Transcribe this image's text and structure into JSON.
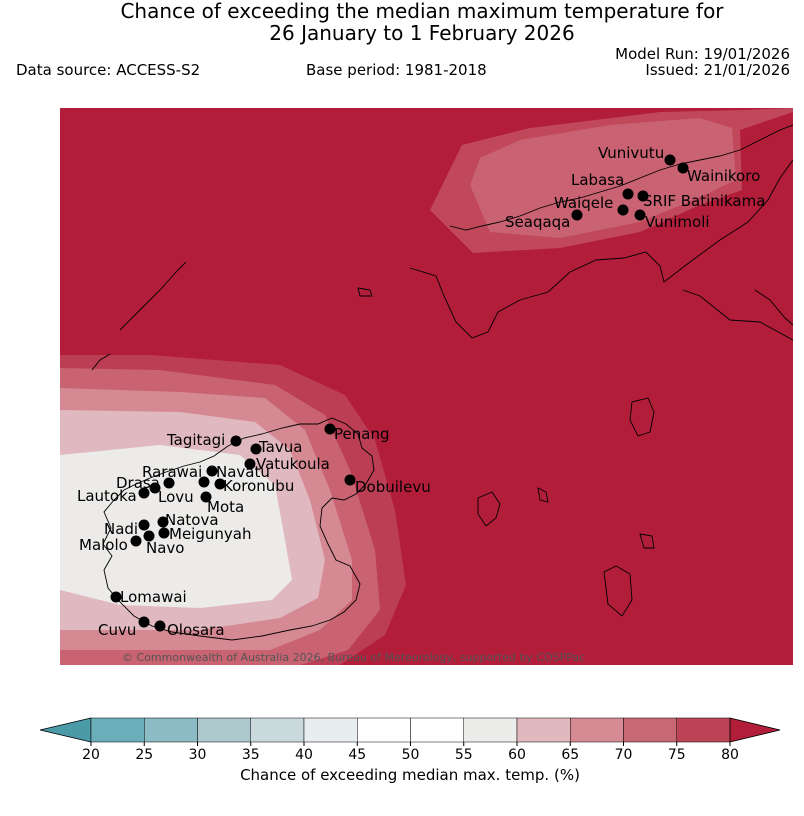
{
  "header": {
    "title_line1": "Chance of exceeding the median maximum temperature for",
    "title_line2": "26 January to 1 February 2026",
    "data_source": "Data source: ACCESS-S2",
    "base_period": "Base period: 1981-2018",
    "model_run": "Model Run: 19/01/2026",
    "issued": "Issued: 21/01/2026"
  },
  "map": {
    "copyright": "© Commonwealth of Australia 2026, Bureau of Meteorology, supported by COSPPac",
    "background_color": "#b21d3a",
    "locations": [
      {
        "name": "Vunivutu"
      },
      {
        "name": "Wainikoro"
      },
      {
        "name": "Labasa"
      },
      {
        "name": "Waiqele"
      },
      {
        "name": "SRIF Batinikama"
      },
      {
        "name": "Seaqaqa"
      },
      {
        "name": "Vunimoli"
      },
      {
        "name": "Penang"
      },
      {
        "name": "Tagitagi"
      },
      {
        "name": "Tavua"
      },
      {
        "name": "Vatukoula"
      },
      {
        "name": "Rarawai"
      },
      {
        "name": "Navatu"
      },
      {
        "name": "Drasa"
      },
      {
        "name": "Koronubu"
      },
      {
        "name": "Lautoka"
      },
      {
        "name": "Lovu"
      },
      {
        "name": "Mota"
      },
      {
        "name": "Dobuilevu"
      },
      {
        "name": "Natova"
      },
      {
        "name": "Nadi"
      },
      {
        "name": "Meigunyah"
      },
      {
        "name": "Malolo"
      },
      {
        "name": "Navo"
      },
      {
        "name": "Lomawai"
      },
      {
        "name": "Cuvu"
      },
      {
        "name": "Olosara"
      }
    ]
  },
  "colorbar": {
    "title": "Chance of exceeding median max. temp. (%)",
    "ticks": [
      "20",
      "25",
      "30",
      "35",
      "40",
      "45",
      "50",
      "55",
      "60",
      "65",
      "70",
      "75",
      "80"
    ],
    "colors": [
      "#6aaeba",
      "#8bbcc5",
      "#adc9cd",
      "#c9d9dc",
      "#e8eef0",
      "#ffffff",
      "#ffffff",
      "#ececea",
      "#e2b8bf",
      "#d68a94",
      "#c86875",
      "#bd4356"
    ],
    "under_color": "#4a9aa8",
    "over_color": "#b21d3a"
  }
}
